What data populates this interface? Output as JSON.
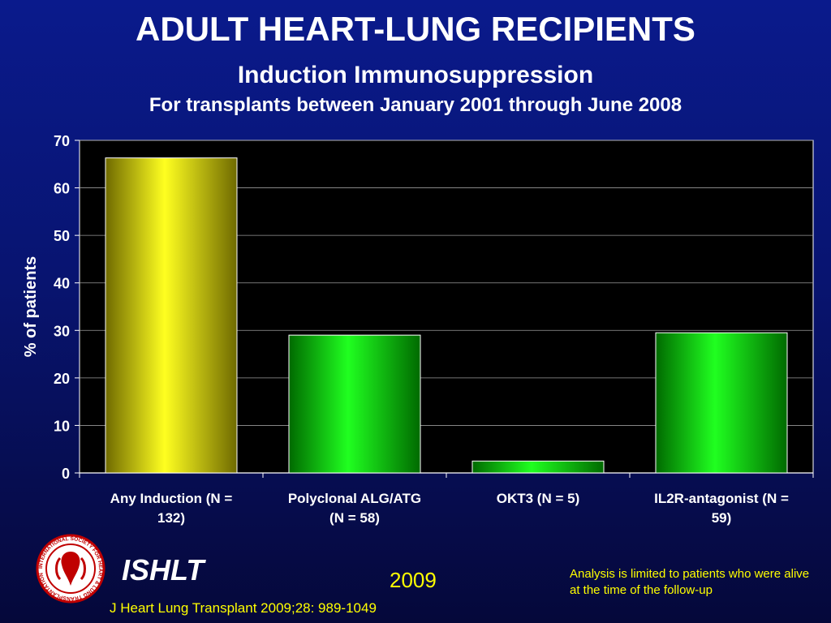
{
  "header": {
    "title": "ADULT HEART-LUNG RECIPIENTS",
    "subtitle": "Induction Immunosuppression",
    "subtitle2": "For transplants between January 2001 through June 2008"
  },
  "chart_data": {
    "type": "bar",
    "categories": [
      [
        "Any Induction (N =",
        "132)"
      ],
      [
        "Polyclonal ALG/ATG",
        "(N = 58)"
      ],
      [
        "OKT3 (N = 5)"
      ],
      [
        "IL2R-antagonist (N =",
        "59)"
      ]
    ],
    "values": [
      66.3,
      29.0,
      2.5,
      29.5
    ],
    "bar_colors": [
      "#f2f200",
      "#00e000",
      "#00e000",
      "#00e000"
    ],
    "ylabel": "% of patients",
    "ylim": [
      0,
      70
    ],
    "yticks": [
      0,
      10,
      20,
      30,
      40,
      50,
      60,
      70
    ],
    "grid": true,
    "plot_background": "#000000"
  },
  "footer": {
    "logo_text": "INTERNATIONAL SOCIETY FOR HEART & LUNG TRANSPLANTATION",
    "org": "ISHLT",
    "year": "2009",
    "note": "Analysis is limited to patients who were alive at the time of the follow-up",
    "citation": "J Heart Lung Transplant 2009;28: 989-1049"
  }
}
